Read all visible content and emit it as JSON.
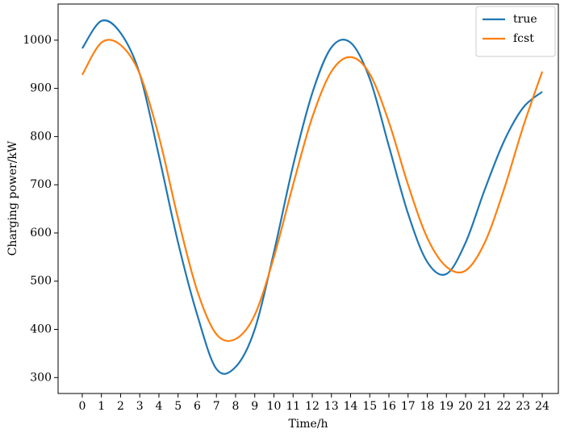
{
  "chart_data": {
    "type": "line",
    "x_label": "Time/h",
    "y_label": "Charging power/kW",
    "x": [
      0,
      1,
      2,
      3,
      4,
      5,
      6,
      7,
      8,
      9,
      10,
      11,
      12,
      13,
      14,
      15,
      16,
      17,
      18,
      19,
      20,
      21,
      22,
      23,
      24
    ],
    "series": [
      {
        "name": "true",
        "color": "#1f77b4",
        "values": [
          983,
          1040,
          1015,
          930,
          760,
          580,
          430,
          318,
          322,
          400,
          560,
          740,
          890,
          985,
          995,
          920,
          780,
          640,
          540,
          515,
          580,
          690,
          790,
          860,
          893
        ]
      },
      {
        "name": "fcst",
        "color": "#ff7f0e",
        "values": [
          928,
          995,
          990,
          930,
          800,
          630,
          480,
          390,
          380,
          430,
          550,
          700,
          840,
          935,
          965,
          930,
          830,
          700,
          590,
          530,
          522,
          580,
          690,
          820,
          935
        ]
      }
    ],
    "xlim": [
      -1.26,
      24.84
    ],
    "ylim": [
      267,
      1075
    ],
    "xticks": [
      0,
      1,
      2,
      3,
      4,
      5,
      6,
      7,
      8,
      9,
      10,
      11,
      12,
      13,
      14,
      15,
      16,
      17,
      18,
      19,
      20,
      21,
      22,
      23,
      24
    ],
    "yticks": [
      300,
      400,
      500,
      600,
      700,
      800,
      900,
      1000
    ],
    "legend": "upper right"
  }
}
